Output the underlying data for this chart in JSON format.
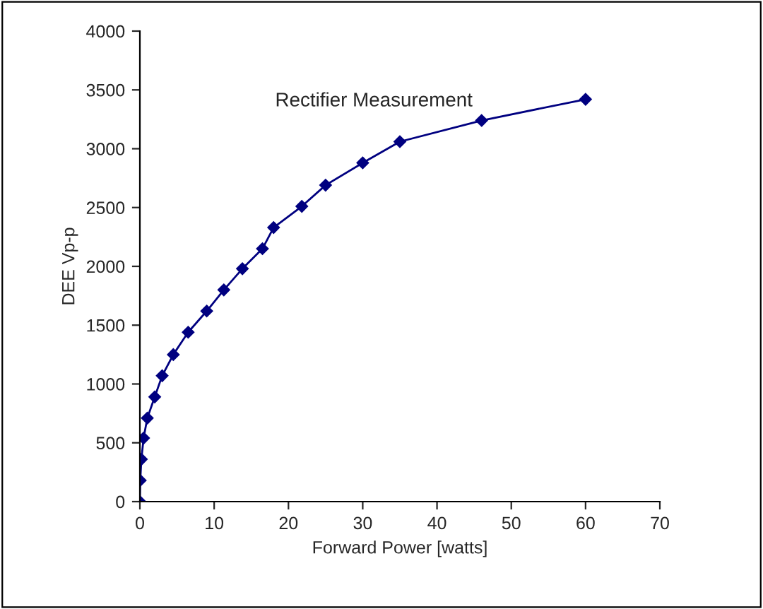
{
  "chart_data": {
    "type": "line",
    "title": "Rectifier Measurement",
    "xlabel": "Forward Power [watts]",
    "ylabel": "DEE Vp-p",
    "x": [
      0,
      0.05,
      0.2,
      0.5,
      1.0,
      2.0,
      3.0,
      4.5,
      6.5,
      9,
      11.3,
      13.8,
      16.5,
      18,
      21.8,
      25,
      30,
      35,
      46,
      60
    ],
    "series": [
      {
        "color": "#000080",
        "values": [
          0,
          180,
          360,
          540,
          710,
          890,
          1070,
          1250,
          1440,
          1620,
          1800,
          1980,
          2150,
          2330,
          2510,
          2690,
          2880,
          3060,
          3240,
          3420
        ]
      }
    ],
    "marker": "diamond",
    "line_style": "solid",
    "grid": false,
    "xlim": [
      0,
      70
    ],
    "xticks": [
      0,
      10,
      20,
      30,
      40,
      50,
      60,
      70
    ],
    "ylim": [
      0,
      4000
    ],
    "yticks": [
      0,
      500,
      1000,
      1500,
      2000,
      2500,
      3000,
      3500,
      4000
    ]
  }
}
